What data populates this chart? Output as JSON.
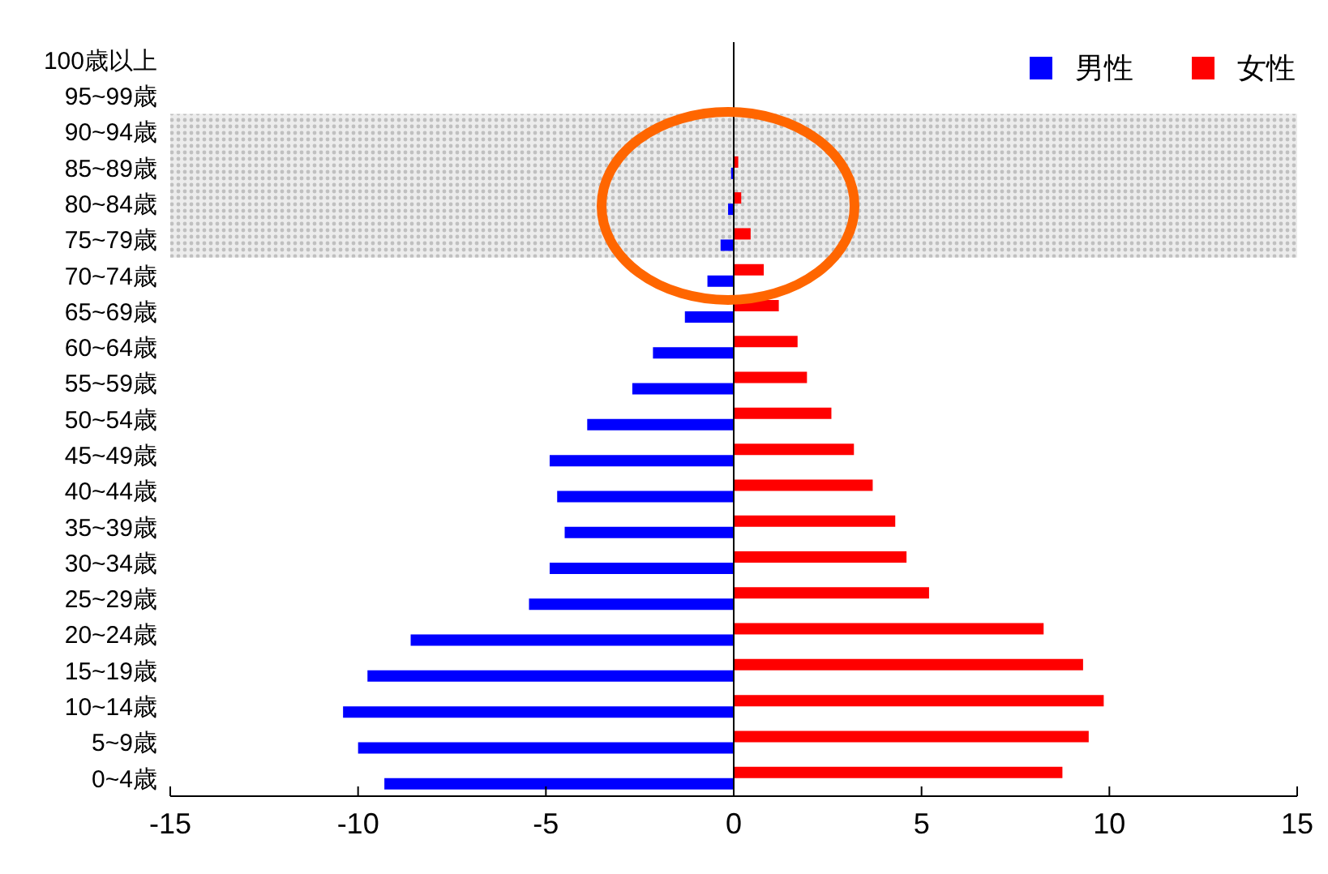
{
  "chart_data": {
    "type": "bar",
    "orientation": "horizontal",
    "categories": [
      "100歳以上",
      "95~99歳",
      "90~94歳",
      "85~89歳",
      "80~84歳",
      "75~79歳",
      "70~74歳",
      "65~69歳",
      "60~64歳",
      "55~59歳",
      "50~54歳",
      "45~49歳",
      "40~44歳",
      "35~39歳",
      "30~34歳",
      "25~29歳",
      "20~24歳",
      "15~19歳",
      "10~14歳",
      "5~9歳",
      "0~4歳"
    ],
    "series": [
      {
        "name": "男性",
        "color": "#0000ff",
        "values": [
          0,
          0,
          0,
          -0.07,
          -0.15,
          -0.35,
          -0.7,
          -1.3,
          -2.15,
          -2.7,
          -3.9,
          -4.9,
          -4.7,
          -4.5,
          -4.9,
          -5.45,
          -8.6,
          -9.75,
          -10.4,
          -10.0,
          -9.3
        ]
      },
      {
        "name": "女性",
        "color": "#ff0000",
        "values": [
          0,
          0,
          0,
          0.12,
          0.2,
          0.45,
          0.8,
          1.2,
          1.7,
          1.95,
          2.6,
          3.2,
          3.7,
          4.3,
          4.6,
          5.2,
          8.25,
          9.3,
          9.85,
          9.45,
          8.75
        ]
      }
    ],
    "xlim": [
      -15,
      15
    ],
    "xticks": [
      -15,
      -10,
      -5,
      0,
      5,
      10,
      15
    ],
    "bands": [
      {
        "axis": "y",
        "from": "90~94歳",
        "to": "75~79歳",
        "color": "#c0c0c0"
      }
    ],
    "legend": "top right"
  }
}
